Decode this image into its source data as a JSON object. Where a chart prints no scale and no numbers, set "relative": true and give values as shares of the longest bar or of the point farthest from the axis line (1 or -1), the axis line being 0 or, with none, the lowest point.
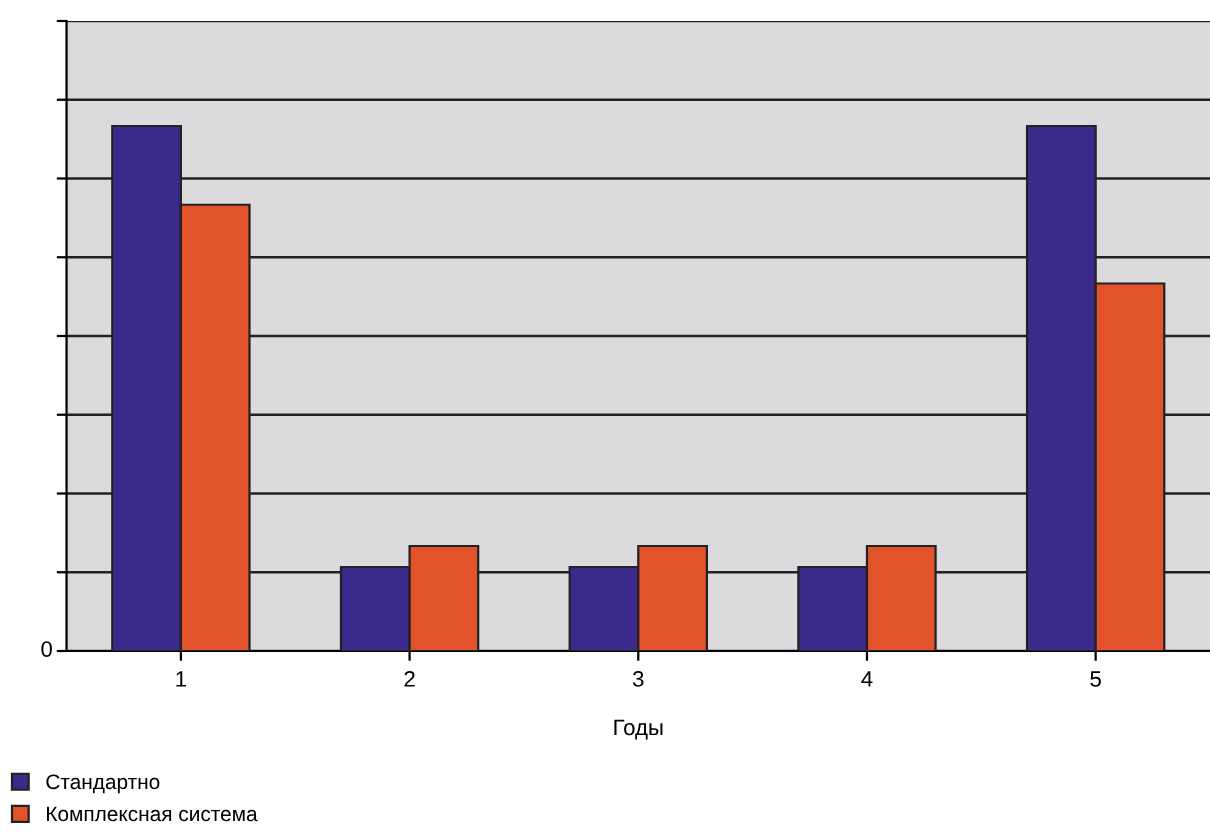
{
  "chart_data": {
    "type": "bar",
    "relative": true,
    "xlabel": "Годы",
    "categories": [
      "1",
      "2",
      "3",
      "4",
      "5"
    ],
    "series": [
      {
        "name": "Стандартно",
        "color": "#3b2a8c",
        "values": [
          1,
          0.16,
          0.16,
          0.16,
          1
        ]
      },
      {
        "name": "Комплексная система",
        "color": "#e2532b",
        "values": [
          0.85,
          0.2,
          0.2,
          0.2,
          0.7
        ]
      }
    ],
    "annotations": [
      "0"
    ],
    "grid": "y",
    "legend": "bottom left"
  }
}
